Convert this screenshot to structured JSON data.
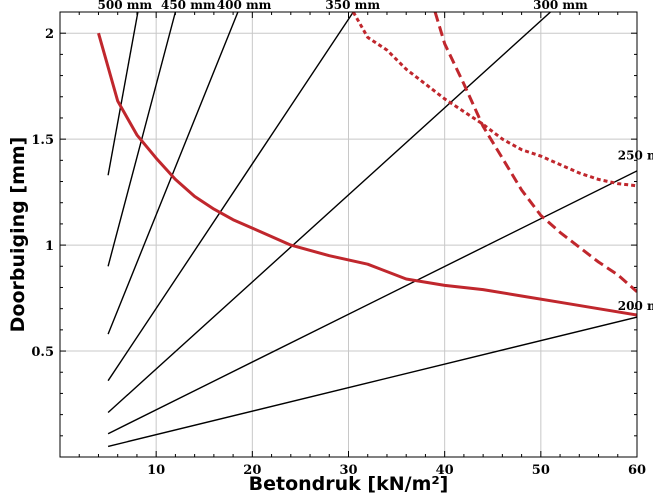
{
  "chart_data": {
    "type": "line",
    "title": "",
    "xlabel": "Betondruk [kN/m²]",
    "ylabel": "Doorbuiging [mm]",
    "xlim": [
      0,
      60
    ],
    "ylim": [
      0,
      2.1
    ],
    "x_ticks": [
      10,
      20,
      30,
      40,
      50,
      60
    ],
    "y_ticks": [
      0.5,
      1,
      1.5,
      2
    ],
    "x_tick_labels": [
      "10",
      "20",
      "30",
      "40",
      "50",
      "60"
    ],
    "y_tick_labels": [
      "0.5",
      "1",
      "1.5",
      "2"
    ],
    "grid": true,
    "legend": "none",
    "colors": {
      "lines": "#000000",
      "red": "#c0272d",
      "grid": "#c8c8c8"
    },
    "series": [
      {
        "name": "500 mm",
        "color": "#000000",
        "dash": "solid",
        "points": [
          [
            5,
            1.33
          ],
          [
            8.1,
            2.1
          ]
        ]
      },
      {
        "name": "450 mm",
        "color": "#000000",
        "dash": "solid",
        "points": [
          [
            5,
            0.9
          ],
          [
            12,
            2.1
          ]
        ]
      },
      {
        "name": "400 mm",
        "color": "#000000",
        "dash": "solid",
        "points": [
          [
            5,
            0.58
          ],
          [
            18.5,
            2.1
          ]
        ]
      },
      {
        "name": "350 mm",
        "color": "#000000",
        "dash": "solid",
        "points": [
          [
            5,
            0.36
          ],
          [
            30.5,
            2.1
          ]
        ]
      },
      {
        "name": "300 mm",
        "color": "#000000",
        "dash": "solid",
        "points": [
          [
            5,
            0.21
          ],
          [
            51,
            2.1
          ]
        ]
      },
      {
        "name": "250 m",
        "color": "#000000",
        "dash": "solid",
        "points": [
          [
            5,
            0.11
          ],
          [
            60,
            1.35
          ]
        ]
      },
      {
        "name": "200 m",
        "color": "#000000",
        "dash": "solid",
        "points": [
          [
            5,
            0.05
          ],
          [
            60,
            0.66
          ]
        ]
      },
      {
        "name": "",
        "color": "#c0272d",
        "dash": "solid",
        "points": [
          [
            4,
            2.0
          ],
          [
            6,
            1.68
          ],
          [
            8,
            1.52
          ],
          [
            10,
            1.41
          ],
          [
            12,
            1.31
          ],
          [
            14,
            1.23
          ],
          [
            16,
            1.17
          ],
          [
            18,
            1.12
          ],
          [
            20,
            1.08
          ],
          [
            22,
            1.04
          ],
          [
            24,
            1.0
          ],
          [
            28,
            0.95
          ],
          [
            32,
            0.91
          ],
          [
            36,
            0.84
          ],
          [
            40,
            0.81
          ],
          [
            44,
            0.79
          ],
          [
            48,
            0.76
          ],
          [
            52,
            0.73
          ],
          [
            56,
            0.7
          ],
          [
            60,
            0.67
          ]
        ]
      },
      {
        "name": "",
        "color": "#c0272d",
        "dash": "short",
        "points": [
          [
            30.5,
            2.1
          ],
          [
            32,
            1.98
          ],
          [
            34,
            1.92
          ],
          [
            36,
            1.83
          ],
          [
            38,
            1.76
          ],
          [
            40,
            1.69
          ],
          [
            42,
            1.63
          ],
          [
            44,
            1.57
          ],
          [
            46,
            1.5
          ],
          [
            48,
            1.45
          ],
          [
            50,
            1.42
          ],
          [
            52,
            1.38
          ],
          [
            54,
            1.34
          ],
          [
            56,
            1.31
          ],
          [
            58,
            1.29
          ],
          [
            60,
            1.28
          ]
        ]
      },
      {
        "name": "",
        "color": "#c0272d",
        "dash": "long",
        "points": [
          [
            39,
            2.1
          ],
          [
            40,
            1.95
          ],
          [
            42,
            1.76
          ],
          [
            44,
            1.56
          ],
          [
            46,
            1.41
          ],
          [
            48,
            1.26
          ],
          [
            50,
            1.14
          ],
          [
            52,
            1.06
          ],
          [
            54,
            0.99
          ],
          [
            56,
            0.92
          ],
          [
            58,
            0.86
          ],
          [
            60,
            0.78
          ]
        ]
      }
    ],
    "series_label_positions": [
      {
        "name": "500 mm",
        "at": [
          3.9,
          2.1
        ]
      },
      {
        "name": "450 mm",
        "at": [
          10.5,
          2.1
        ]
      },
      {
        "name": "400 mm",
        "at": [
          16.3,
          2.1
        ]
      },
      {
        "name": "350 mm",
        "at": [
          27.6,
          2.1
        ]
      },
      {
        "name": "300 mm",
        "at": [
          49.2,
          2.1
        ]
      },
      {
        "name": "250 m",
        "at": [
          58,
          1.39
        ]
      },
      {
        "name": "200 m",
        "at": [
          58,
          0.68
        ]
      }
    ]
  }
}
